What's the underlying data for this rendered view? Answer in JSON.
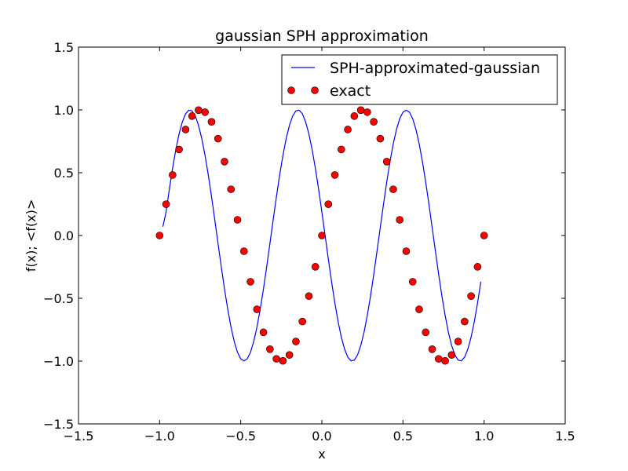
{
  "chart_data": {
    "type": "line",
    "title": "gaussian SPH approximation",
    "xlabel": "x",
    "ylabel": "f(x);  <f(x)>",
    "xlim": [
      -1.5,
      1.5
    ],
    "ylim": [
      -1.5,
      1.5
    ],
    "xticks": [
      "−1.5",
      "−1.0",
      "−0.5",
      "0.0",
      "0.5",
      "1.0",
      "1.5"
    ],
    "yticks": [
      "−1.5",
      "−1.0",
      "−0.5",
      "0.0",
      "0.5",
      "1.0",
      "1.5"
    ],
    "grid": false,
    "legend_position": "top-right",
    "series": [
      {
        "name": "SPH-approximated-gaussian",
        "style": "line",
        "color": "#0000ff",
        "x": [
          -0.98,
          -0.96,
          -0.94,
          -0.92,
          -0.9,
          -0.88,
          -0.86,
          -0.84,
          -0.82,
          -0.8,
          -0.78,
          -0.76,
          -0.74,
          -0.72,
          -0.7,
          -0.68,
          -0.66,
          -0.64,
          -0.62,
          -0.6,
          -0.58,
          -0.56,
          -0.54,
          -0.52,
          -0.5,
          -0.48,
          -0.46,
          -0.44,
          -0.42,
          -0.4,
          -0.38,
          -0.36,
          -0.34,
          -0.32,
          -0.3,
          -0.28,
          -0.26,
          -0.24,
          -0.22,
          -0.2,
          -0.18,
          -0.16,
          -0.14,
          -0.12,
          -0.1,
          -0.08,
          -0.06,
          -0.04,
          -0.02,
          0.0,
          0.02,
          0.04,
          0.06,
          0.08,
          0.1,
          0.12,
          0.14,
          0.16,
          0.18,
          0.2,
          0.22,
          0.24,
          0.26,
          0.28,
          0.3,
          0.32,
          0.34,
          0.36,
          0.38,
          0.4,
          0.42,
          0.44,
          0.46,
          0.48,
          0.5,
          0.52,
          0.54,
          0.56,
          0.58,
          0.6,
          0.62,
          0.64,
          0.66,
          0.68,
          0.7,
          0.72,
          0.74,
          0.76,
          0.78,
          0.8,
          0.82,
          0.84,
          0.86,
          0.88,
          0.9,
          0.92,
          0.94,
          0.96,
          0.98
        ],
        "y": [
          0.07,
          0.188,
          0.368,
          0.536,
          0.684,
          0.809,
          0.904,
          0.969,
          0.998,
          0.992,
          0.951,
          0.876,
          0.771,
          0.637,
          0.482,
          0.309,
          0.125,
          -0.063,
          -0.249,
          -0.426,
          -0.588,
          -0.729,
          -0.844,
          -0.93,
          -0.982,
          -0.998,
          -0.982,
          -0.93,
          -0.844,
          -0.729,
          -0.588,
          -0.426,
          -0.249,
          -0.063,
          0.125,
          0.309,
          0.482,
          0.637,
          0.771,
          0.876,
          0.951,
          0.992,
          0.998,
          0.969,
          0.904,
          0.809,
          0.684,
          0.536,
          0.368,
          0.188,
          0.0,
          -0.188,
          -0.368,
          -0.536,
          -0.684,
          -0.809,
          -0.904,
          -0.969,
          -0.998,
          -0.992,
          -0.951,
          -0.876,
          -0.771,
          -0.637,
          -0.482,
          -0.309,
          -0.125,
          0.063,
          0.249,
          0.426,
          0.588,
          0.729,
          0.844,
          0.93,
          0.982,
          0.998,
          0.982,
          0.93,
          0.844,
          0.729,
          0.588,
          0.426,
          0.249,
          0.063,
          -0.125,
          -0.309,
          -0.482,
          -0.637,
          -0.771,
          -0.876,
          -0.951,
          -0.992,
          -0.998,
          -0.969,
          -0.904,
          -0.809,
          -0.684,
          -0.536,
          -0.368
        ]
      },
      {
        "name": "exact",
        "style": "markers",
        "color": "#ff0000",
        "x": [
          -1.0,
          -0.96,
          -0.92,
          -0.88,
          -0.84,
          -0.8,
          -0.76,
          -0.72,
          -0.68,
          -0.64,
          -0.6,
          -0.56,
          -0.52,
          -0.48,
          -0.44,
          -0.4,
          -0.36,
          -0.32,
          -0.28,
          -0.24,
          -0.2,
          -0.16,
          -0.12,
          -0.08,
          -0.04,
          0.0,
          0.04,
          0.08,
          0.12,
          0.16,
          0.2,
          0.24,
          0.28,
          0.32,
          0.36,
          0.4,
          0.44,
          0.48,
          0.52,
          0.56,
          0.6,
          0.64,
          0.68,
          0.72,
          0.76,
          0.8,
          0.84,
          0.88,
          0.92,
          0.96,
          1.0
        ],
        "y": [
          0.0,
          0.249,
          0.482,
          0.685,
          0.844,
          0.951,
          0.998,
          0.982,
          0.905,
          0.771,
          0.588,
          0.368,
          0.125,
          -0.125,
          -0.368,
          -0.588,
          -0.771,
          -0.905,
          -0.982,
          -0.998,
          -0.951,
          -0.844,
          -0.685,
          -0.482,
          -0.249,
          0.0,
          0.249,
          0.482,
          0.685,
          0.844,
          0.951,
          0.998,
          0.982,
          0.905,
          0.771,
          0.588,
          0.368,
          0.125,
          -0.125,
          -0.368,
          -0.588,
          -0.771,
          -0.905,
          -0.982,
          -0.998,
          -0.951,
          -0.844,
          -0.685,
          -0.482,
          -0.249,
          0.0
        ]
      }
    ]
  }
}
